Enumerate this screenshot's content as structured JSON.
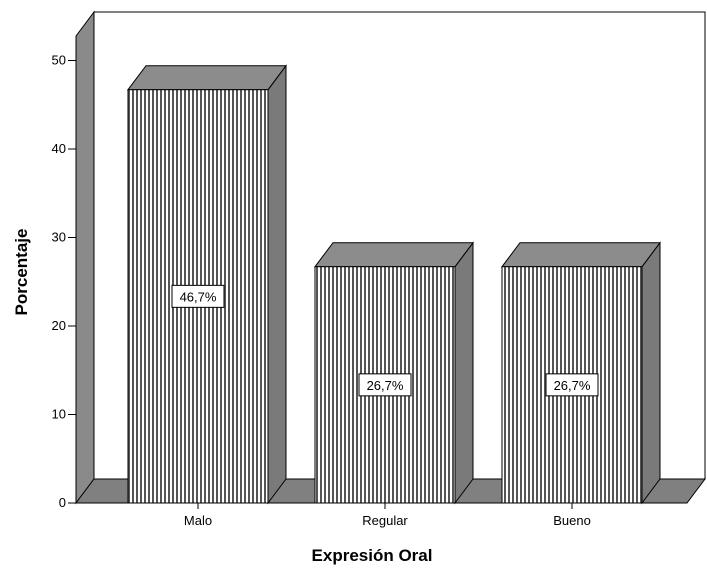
{
  "chart_data": {
    "type": "bar",
    "categories": [
      "Malo",
      "Regular",
      "Bueno"
    ],
    "values": [
      46.7,
      26.7,
      26.7
    ],
    "data_labels": [
      "46,7%",
      "26,7%",
      "26,7%"
    ],
    "xlabel": "Expresión Oral",
    "ylabel": "Porcentaje",
    "ylim": [
      0,
      50
    ],
    "yticks": [
      "0",
      "10",
      "20",
      "30",
      "40",
      "50"
    ],
    "grid": false,
    "bar_style": "3d-vertical-stripes",
    "colors": {
      "bar_face": "#ffffff",
      "bar_stripe": "#555555",
      "bar_side": "#7a7a7a",
      "bar_top": "#8c8c8c",
      "wall": "#8a8a8a",
      "floor": "#808080",
      "outline": "#000000"
    }
  }
}
